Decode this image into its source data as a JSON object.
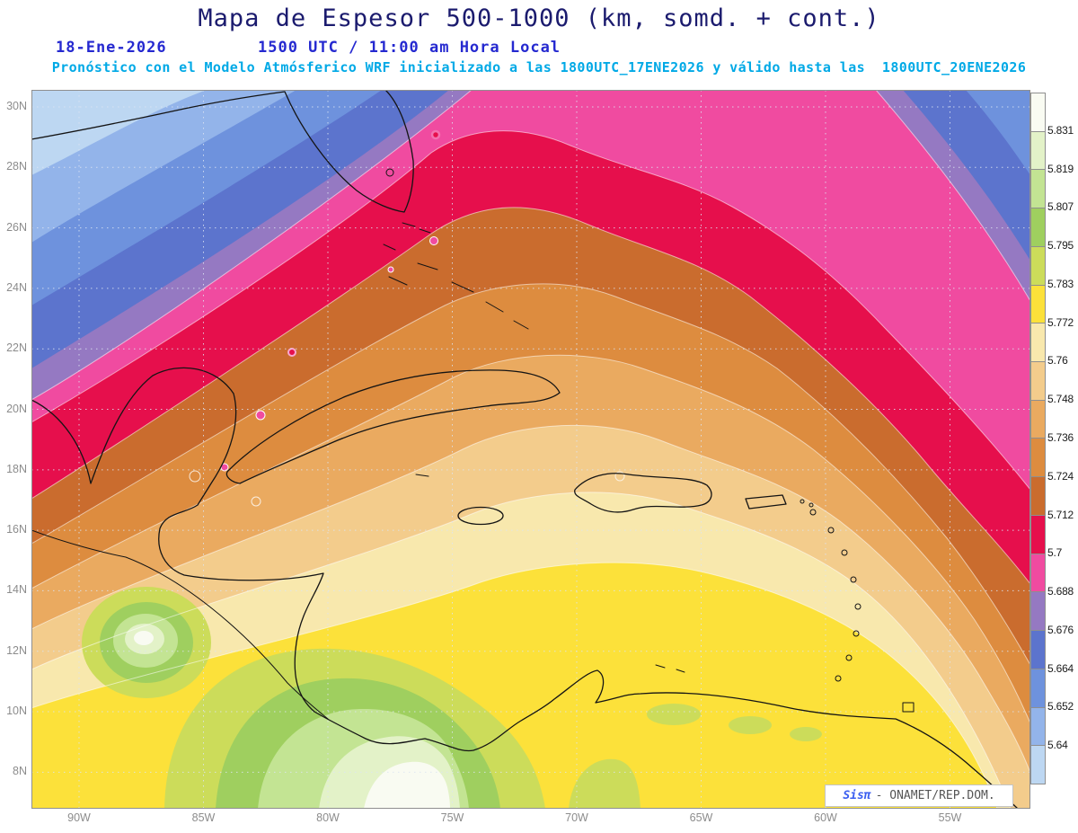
{
  "header": {
    "title": "Mapa de Espesor 500-1000 (km, somd. + cont.)",
    "date_label": "18-Ene-2026",
    "time_label": "1500 UTC / 11:00 am Hora Local",
    "forecast_note": "Pronóstico con el Modelo Atmósferico WRF inicializado a las 1800UTC_17ENE2026 y válido hasta las  1800UTC_20ENE2026"
  },
  "map": {
    "lat_labels": [
      "30N",
      "28N",
      "26N",
      "24N",
      "22N",
      "20N",
      "18N",
      "16N",
      "14N",
      "12N",
      "10N",
      "8N"
    ],
    "lon_labels": [
      "90W",
      "85W",
      "80W",
      "75W",
      "70W",
      "65W",
      "60W",
      "55W"
    ]
  },
  "colorbar": {
    "tick_labels_top_to_bottom": [
      "5.831",
      "5.819",
      "5.807",
      "5.795",
      "5.783",
      "5.772",
      "5.76",
      "5.748",
      "5.736",
      "5.724",
      "5.712",
      "5.7",
      "5.688",
      "5.676",
      "5.664",
      "5.652",
      "5.64"
    ]
  },
  "branding": {
    "app": "Sisπ",
    "org": "- ONAMET/REP.DOM."
  },
  "chart_data": {
    "type": "heatmap",
    "title": "Mapa de Espesor 500-1000 (km, somd. + cont.)",
    "variable": "Espesor (thickness) 500-1000",
    "units": "km",
    "x_ticks": [
      "90W",
      "85W",
      "80W",
      "75W",
      "70W",
      "65W",
      "60W",
      "55W"
    ],
    "y_ticks": [
      "30N",
      "28N",
      "26N",
      "24N",
      "22N",
      "20N",
      "18N",
      "16N",
      "14N",
      "12N",
      "10N",
      "8N"
    ],
    "contour_levels": [
      5.64,
      5.652,
      5.664,
      5.676,
      5.688,
      5.7,
      5.712,
      5.724,
      5.736,
      5.748,
      5.76,
      5.772,
      5.783,
      5.795,
      5.807,
      5.819,
      5.831
    ],
    "palette_low_to_high": [
      "#bdd7f2",
      "#93b4ea",
      "#6e92dd",
      "#5c74cd",
      "#9579c2",
      "#f04ba0",
      "#e60f4c",
      "#ca6c2e",
      "#dd8c3f",
      "#eaaa60",
      "#f3cc8c",
      "#f8e8ad",
      "#fce13a",
      "#ccdc5a",
      "#9fcf5f",
      "#c3e493",
      "#e3f2c8",
      "#f9fbf2"
    ],
    "legend_position": "right",
    "grid": "dotted lat/lon graticule",
    "pattern_summary": [
      "Values decrease from south to north: above 5.831 km (white/pale green) over Panama and Colombia, below 5.64 km (light blue) at the far northwest corner",
      "Crimson 5.7-5.712 band arcs from the Yucatan Peninsula over western Cuba and South Florida, then bends southeast toward 55W",
      "Magenta, purple and blue low-thickness bands cover the Gulf of Mexico, Florida and the northern edge of the domain",
      "Yellow 5.772-5.783 air covers the southwest Caribbean, with green-to-white thickness maxima over Costa Rica, Panama and Colombia",
      "Small closed magenta/red contour spots appear over western Cuba and north of the Bahamas"
    ]
  }
}
